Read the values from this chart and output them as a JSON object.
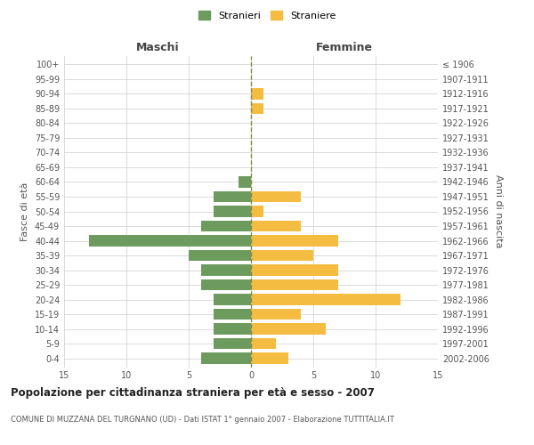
{
  "age_groups": [
    "100+",
    "95-99",
    "90-94",
    "85-89",
    "80-84",
    "75-79",
    "70-74",
    "65-69",
    "60-64",
    "55-59",
    "50-54",
    "45-49",
    "40-44",
    "35-39",
    "30-34",
    "25-29",
    "20-24",
    "15-19",
    "10-14",
    "5-9",
    "0-4"
  ],
  "birth_years": [
    "≤ 1906",
    "1907-1911",
    "1912-1916",
    "1917-1921",
    "1922-1926",
    "1927-1931",
    "1932-1936",
    "1937-1941",
    "1942-1946",
    "1947-1951",
    "1952-1956",
    "1957-1961",
    "1962-1966",
    "1967-1971",
    "1972-1976",
    "1977-1981",
    "1982-1986",
    "1987-1991",
    "1992-1996",
    "1997-2001",
    "2002-2006"
  ],
  "maschi": [
    0,
    0,
    0,
    0,
    0,
    0,
    0,
    0,
    1,
    3,
    3,
    4,
    13,
    5,
    4,
    4,
    3,
    3,
    3,
    3,
    4
  ],
  "femmine": [
    0,
    0,
    1,
    1,
    0,
    0,
    0,
    0,
    0,
    4,
    1,
    4,
    7,
    5,
    7,
    7,
    12,
    4,
    6,
    2,
    3
  ],
  "maschi_color": "#6d9b5e",
  "femmine_color": "#f5bc42",
  "title_main": "Popolazione per cittadinanza straniera per età e sesso - 2007",
  "title_sub": "COMUNE DI MUZZANA DEL TURGNANO (UD) - Dati ISTAT 1° gennaio 2007 - Elaborazione TUTTITALIA.IT",
  "xlabel_left": "Maschi",
  "xlabel_right": "Femmine",
  "ylabel_left": "Fasce di età",
  "ylabel_right": "Anni di nascita",
  "legend_maschi": "Stranieri",
  "legend_femmine": "Straniere",
  "xlim": 15,
  "background_color": "#ffffff",
  "grid_color": "#cccccc"
}
